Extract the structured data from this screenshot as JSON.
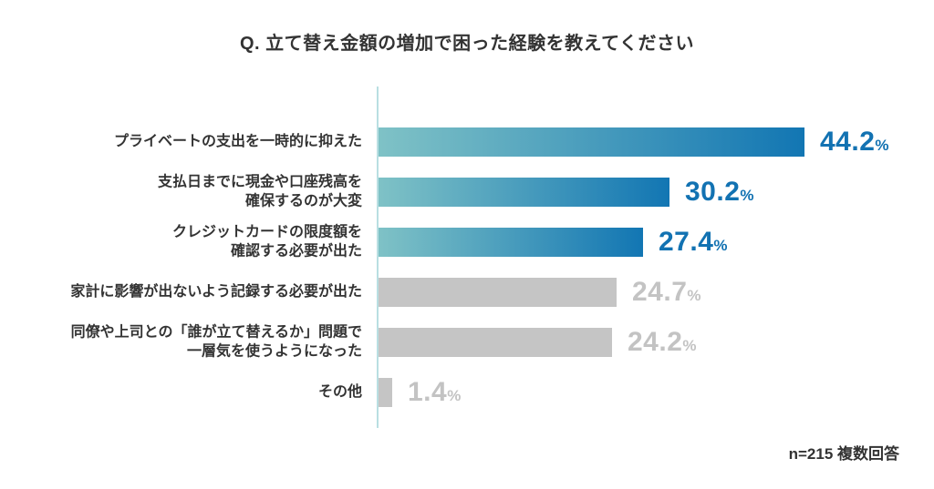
{
  "title": "Q. 立て替え金額の増加で困った経験を教えてください",
  "footnote": "n=215 複数回答",
  "chart_data": {
    "type": "bar",
    "orientation": "horizontal",
    "title": "Q. 立て替え金額の増加で困った経験を教えてください",
    "unit": "%",
    "categories": [
      "プライベートの支出を一時的に抑えた",
      "支払日までに現金や口座残高を\n確保するのが大変",
      "クレジットカードの限度額を\n確認する必要が出た",
      "家計に影響が出ないよう記録する必要が出た",
      "同僚や上司との「誰が立て替えるか」問題で\n一層気を使うようになった",
      "その他"
    ],
    "values": [
      44.2,
      30.2,
      27.4,
      24.7,
      24.2,
      1.4
    ],
    "value_labels": [
      "44.2",
      "30.2",
      "27.4",
      "24.7",
      "24.2",
      "1.4"
    ],
    "highlighted": [
      true,
      true,
      true,
      false,
      false,
      false
    ],
    "xlim": [
      0,
      47
    ],
    "grid": false,
    "legend": "none",
    "annotation": "n=215 複数回答",
    "colors": {
      "bar_gradient_start": "#7fc2c6",
      "bar_gradient_end": "#1276b3",
      "bar_gray": "#c5c5c5",
      "value_blue": "#1272b2",
      "value_gray": "#c3c3c3",
      "axis_line": "#b9dfe2",
      "text": "#333333",
      "background": "#ffffff"
    }
  }
}
